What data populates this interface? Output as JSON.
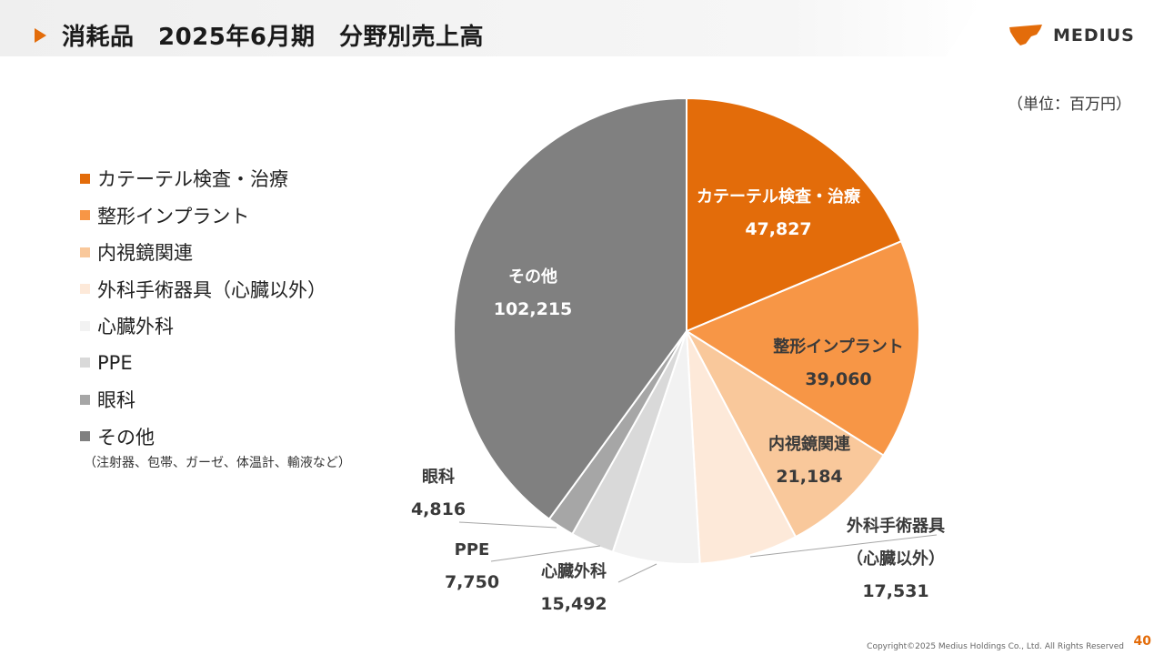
{
  "header": {
    "title": "消耗品　2025年6月期　分野別売上高"
  },
  "brand": {
    "logo_text": "MEDIUS",
    "logo_color": "#e36c0a"
  },
  "unit_label": "（単位：百万円）",
  "legend": {
    "items": [
      {
        "label": "カテーテル検査・治療",
        "color": "#e36c0a"
      },
      {
        "label": "整形インプラント",
        "color": "#f79646"
      },
      {
        "label": "内視鏡関連",
        "color": "#f9c89b"
      },
      {
        "label": "外科手術器具（心臓以外）",
        "color": "#fde9d9"
      },
      {
        "label": "心臓外科",
        "color": "#f2f2f2"
      },
      {
        "label": "PPE",
        "color": "#d9d9d9"
      },
      {
        "label": "眼科",
        "color": "#a6a6a6"
      },
      {
        "label": "その他",
        "color": "#808080"
      }
    ],
    "note": "（注射器、包帯、ガーゼ、体温計、輸液など）"
  },
  "chart_data": {
    "type": "pie",
    "title": "",
    "start_angle": "12 o'clock",
    "direction": "clockwise",
    "slices": [
      {
        "name": "カテーテル検査・治療",
        "value": 47827,
        "value_label": "47,827",
        "label_lines": [
          "カテーテル検査・治療"
        ],
        "color": "#e36c0a",
        "label_color": "#ffffff"
      },
      {
        "name": "整形インプラント",
        "value": 39060,
        "value_label": "39,060",
        "label_lines": [
          "整形インプラント"
        ],
        "color": "#f79646",
        "label_color": "#3a3a3a"
      },
      {
        "name": "内視鏡関連",
        "value": 21184,
        "value_label": "21,184",
        "label_lines": [
          "内視鏡関連"
        ],
        "color": "#f9c89b",
        "label_color": "#3a3a3a"
      },
      {
        "name": "外科手術器具（心臓以外）",
        "value": 17531,
        "value_label": "17,531",
        "label_lines": [
          "外科手術器具",
          "（心臓以外）"
        ],
        "color": "#fde9d9",
        "label_color": "#3a3a3a"
      },
      {
        "name": "心臓外科",
        "value": 15492,
        "value_label": "15,492",
        "label_lines": [
          "心臓外科"
        ],
        "color": "#f2f2f2",
        "label_color": "#3a3a3a"
      },
      {
        "name": "PPE",
        "value": 7750,
        "value_label": "7,750",
        "label_lines": [
          "PPE"
        ],
        "color": "#d9d9d9",
        "label_color": "#3a3a3a"
      },
      {
        "name": "眼科",
        "value": 4816,
        "value_label": "4,816",
        "label_lines": [
          "眼科"
        ],
        "color": "#a6a6a6",
        "label_color": "#3a3a3a"
      },
      {
        "name": "その他",
        "value": 102215,
        "value_label": "102,215",
        "label_lines": [
          "その他"
        ],
        "color": "#808080",
        "label_color": "#ffffff"
      }
    ]
  },
  "footer": {
    "copyright": "Copyright©2025 Medius Holdings Co., Ltd. All Rights Reserved",
    "page_number": "40"
  }
}
